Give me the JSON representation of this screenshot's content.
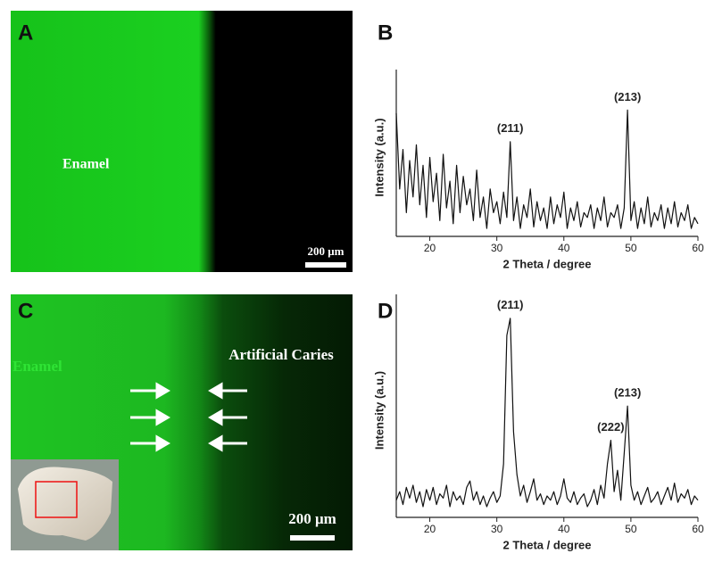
{
  "panels": {
    "A": {
      "label": "A",
      "text": "Enamel",
      "scale": "200 μm"
    },
    "C": {
      "label": "C",
      "text": "Enamel",
      "text2": "Artificial Caries",
      "scale": "200 μm"
    }
  },
  "chart_data": [
    {
      "type": "line",
      "label": "B",
      "x_label": "2 Theta / degree",
      "y_label": "Intensity (a.u.)",
      "xlim": [
        15,
        60
      ],
      "xticks": [
        20,
        30,
        40,
        50,
        60
      ],
      "ylim": [
        0,
        100
      ],
      "annotations": [
        {
          "text": "(211)",
          "x": 32
        },
        {
          "text": "(213)",
          "x": 49.5
        }
      ],
      "x": [
        15,
        15.5,
        16,
        16.5,
        17,
        17.5,
        18,
        18.5,
        19,
        19.5,
        20,
        20.5,
        21,
        21.5,
        22,
        22.5,
        23,
        23.5,
        24,
        24.5,
        25,
        25.5,
        26,
        26.5,
        27,
        27.5,
        28,
        28.5,
        29,
        29.5,
        30,
        30.5,
        31,
        31.5,
        32,
        32.5,
        33,
        33.5,
        34,
        34.5,
        35,
        35.5,
        36,
        36.5,
        37,
        37.5,
        38,
        38.5,
        39,
        39.5,
        40,
        40.5,
        41,
        41.5,
        42,
        42.5,
        43,
        43.5,
        44,
        44.5,
        45,
        45.5,
        46,
        46.5,
        47,
        47.5,
        48,
        48.5,
        49,
        49.5,
        50,
        50.5,
        51,
        51.5,
        52,
        52.5,
        53,
        53.5,
        54,
        54.5,
        55,
        55.5,
        56,
        56.5,
        57,
        57.5,
        58,
        58.5,
        59,
        59.5,
        60
      ],
      "series": [
        {
          "color": "#111111",
          "values": [
            78,
            30,
            55,
            15,
            48,
            25,
            58,
            20,
            45,
            12,
            50,
            22,
            40,
            10,
            52,
            18,
            35,
            8,
            45,
            15,
            38,
            20,
            30,
            10,
            42,
            12,
            25,
            5,
            30,
            15,
            22,
            8,
            28,
            12,
            60,
            10,
            25,
            5,
            20,
            12,
            30,
            6,
            22,
            10,
            18,
            5,
            25,
            8,
            20,
            12,
            28,
            5,
            18,
            10,
            22,
            6,
            15,
            12,
            20,
            5,
            18,
            10,
            25,
            6,
            15,
            12,
            20,
            5,
            18,
            80,
            10,
            22,
            5,
            18,
            8,
            25,
            6,
            15,
            10,
            20,
            5,
            18,
            8,
            22,
            6,
            15,
            10,
            20,
            5,
            12,
            8
          ]
        }
      ]
    },
    {
      "type": "line",
      "label": "D",
      "x_label": "2 Theta / degree",
      "y_label": "Intensity (a.u.)",
      "xlim": [
        15,
        60
      ],
      "xticks": [
        20,
        30,
        40,
        50,
        60
      ],
      "ylim": [
        0,
        100
      ],
      "annotations": [
        {
          "text": "(211)",
          "x": 32
        },
        {
          "text": "(222)",
          "x": 47
        },
        {
          "text": "(213)",
          "x": 49.5
        }
      ],
      "x": [
        15,
        15.5,
        16,
        16.5,
        17,
        17.5,
        18,
        18.5,
        19,
        19.5,
        20,
        20.5,
        21,
        21.5,
        22,
        22.5,
        23,
        23.5,
        24,
        24.5,
        25,
        25.5,
        26,
        26.5,
        27,
        27.5,
        28,
        28.5,
        29,
        29.5,
        30,
        30.5,
        31,
        31.5,
        32,
        32.5,
        33,
        33.5,
        34,
        34.5,
        35,
        35.5,
        36,
        36.5,
        37,
        37.5,
        38,
        38.5,
        39,
        39.5,
        40,
        40.5,
        41,
        41.5,
        42,
        42.5,
        43,
        43.5,
        44,
        44.5,
        45,
        45.5,
        46,
        46.5,
        47,
        47.5,
        48,
        48.5,
        49,
        49.5,
        50,
        50.5,
        51,
        51.5,
        52,
        52.5,
        53,
        53.5,
        54,
        54.5,
        55,
        55.5,
        56,
        56.5,
        57,
        57.5,
        58,
        58.5,
        59,
        59.5,
        60
      ],
      "series": [
        {
          "color": "#111111",
          "values": [
            8,
            12,
            6,
            14,
            9,
            15,
            7,
            12,
            5,
            13,
            8,
            14,
            6,
            11,
            9,
            15,
            5,
            12,
            8,
            10,
            6,
            14,
            17,
            8,
            12,
            6,
            10,
            5,
            9,
            12,
            7,
            10,
            25,
            85,
            93,
            40,
            20,
            10,
            15,
            7,
            12,
            18,
            8,
            11,
            6,
            10,
            8,
            12,
            6,
            10,
            18,
            9,
            7,
            12,
            6,
            9,
            11,
            5,
            8,
            13,
            6,
            15,
            9,
            25,
            36,
            12,
            22,
            8,
            30,
            52,
            15,
            8,
            12,
            6,
            10,
            14,
            7,
            9,
            12,
            6,
            10,
            14,
            8,
            16,
            7,
            11,
            9,
            13,
            6,
            10,
            8
          ]
        }
      ]
    }
  ]
}
